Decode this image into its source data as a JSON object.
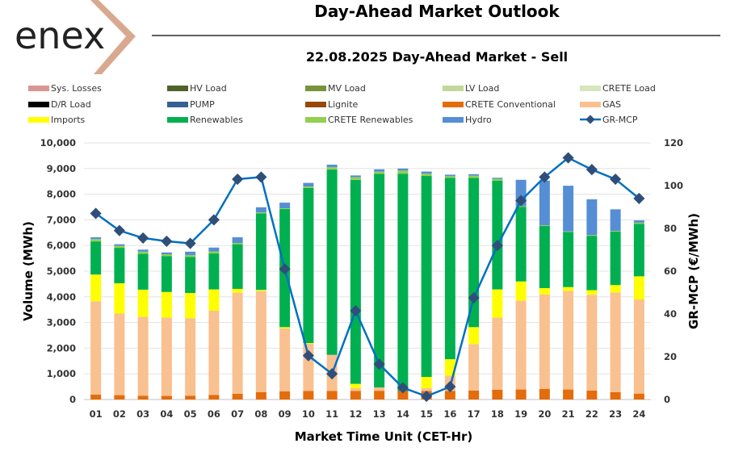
{
  "header": {
    "logo_text": "enex",
    "title": "Day-Ahead Market Outlook",
    "subtitle": "22.08.2025  Day-Ahead Market - Sell"
  },
  "chart_data": {
    "type": "bar",
    "stacked": true,
    "title": "22.08.2025  Day-Ahead Market - Sell",
    "xlabel": "Market Time Unit (CET-Hr)",
    "ylabel": "Volume (MWh)",
    "y2label": "GR-MCP (€/MWh)",
    "ylim": [
      0,
      10000
    ],
    "y2lim": [
      0,
      120
    ],
    "yticks": [
      "0",
      "1,000",
      "2,000",
      "3,000",
      "4,000",
      "5,000",
      "6,000",
      "7,000",
      "8,000",
      "9,000",
      "10,000"
    ],
    "y2ticks": [
      "0",
      "20",
      "40",
      "60",
      "80",
      "100",
      "120"
    ],
    "grid": true,
    "legend_position": "top",
    "categories": [
      "01",
      "02",
      "03",
      "04",
      "05",
      "06",
      "07",
      "08",
      "09",
      "10",
      "11",
      "12",
      "13",
      "14",
      "15",
      "16",
      "17",
      "18",
      "19",
      "20",
      "21",
      "22",
      "23",
      "24"
    ],
    "legend": [
      {
        "name": "Sys. Losses",
        "color": "#da9694",
        "kind": "bar"
      },
      {
        "name": "HV Load",
        "color": "#4f6228",
        "kind": "bar"
      },
      {
        "name": "MV Load",
        "color": "#77933c",
        "kind": "bar"
      },
      {
        "name": "LV Load",
        "color": "#c4d79b",
        "kind": "bar"
      },
      {
        "name": "CRETE Load",
        "color": "#d8e4bc",
        "kind": "bar"
      },
      {
        "name": "D/R Load",
        "color": "#000000",
        "kind": "bar"
      },
      {
        "name": "PUMP",
        "color": "#366092",
        "kind": "bar"
      },
      {
        "name": "Lignite",
        "color": "#974706",
        "kind": "bar"
      },
      {
        "name": "CRETE Conventional",
        "color": "#e46c0a",
        "kind": "bar"
      },
      {
        "name": "GAS",
        "color": "#f9c090",
        "kind": "bar"
      },
      {
        "name": "Imports",
        "color": "#ffff00",
        "kind": "bar"
      },
      {
        "name": "Renewables",
        "color": "#00b050",
        "kind": "bar"
      },
      {
        "name": "CRETE Renewables",
        "color": "#92d050",
        "kind": "bar"
      },
      {
        "name": "Hydro",
        "color": "#558ed5",
        "kind": "bar"
      },
      {
        "name": "GR-MCP",
        "color": "#0070c0",
        "kind": "line"
      }
    ],
    "series": [
      {
        "name": "CRETE Conventional",
        "color": "#e46c0a",
        "values": [
          190,
          170,
          150,
          140,
          150,
          180,
          220,
          290,
          320,
          330,
          330,
          330,
          340,
          330,
          330,
          330,
          350,
          380,
          390,
          410,
          390,
          350,
          290,
          230
        ]
      },
      {
        "name": "GAS",
        "color": "#f9c090",
        "values": [
          3640,
          3180,
          3070,
          3050,
          3020,
          3280,
          3940,
          3930,
          2450,
          1840,
          1410,
          110,
          130,
          0,
          110,
          600,
          1810,
          2810,
          3460,
          3680,
          3840,
          3730,
          3880,
          3670
        ]
      },
      {
        "name": "Imports",
        "color": "#ffff00",
        "values": [
          1040,
          1180,
          1060,
          1000,
          980,
          830,
          150,
          50,
          50,
          30,
          0,
          170,
          0,
          0,
          440,
          640,
          660,
          1100,
          750,
          250,
          150,
          180,
          290,
          900
        ]
      },
      {
        "name": "Renewables",
        "color": "#00b050",
        "values": [
          1290,
          1380,
          1400,
          1400,
          1400,
          1400,
          1740,
          2980,
          4600,
          6040,
          7220,
          7950,
          8320,
          8470,
          7830,
          7070,
          5820,
          4240,
          2900,
          2420,
          2150,
          2120,
          2080,
          2040
        ]
      },
      {
        "name": "CRETE Renewables",
        "color": "#92d050",
        "values": [
          90,
          80,
          80,
          70,
          80,
          80,
          50,
          40,
          30,
          60,
          90,
          100,
          90,
          120,
          90,
          60,
          80,
          70,
          30,
          30,
          20,
          30,
          30,
          50
        ]
      },
      {
        "name": "Hydro",
        "color": "#558ed5",
        "values": [
          70,
          60,
          80,
          70,
          130,
          150,
          220,
          200,
          220,
          140,
          100,
          70,
          90,
          80,
          80,
          60,
          60,
          40,
          1030,
          1740,
          1780,
          1390,
          840,
          90
        ]
      }
    ],
    "line": {
      "name": "GR-MCP",
      "color": "#0070c0",
      "marker_color": "#2f4f7a",
      "axis": "right",
      "values": [
        87,
        79,
        75.5,
        74,
        73,
        84,
        103,
        104,
        61,
        20.5,
        12,
        41.5,
        16.5,
        5.5,
        1.5,
        6,
        47.5,
        72,
        93,
        104,
        113,
        107.5,
        103,
        94
      ]
    }
  }
}
